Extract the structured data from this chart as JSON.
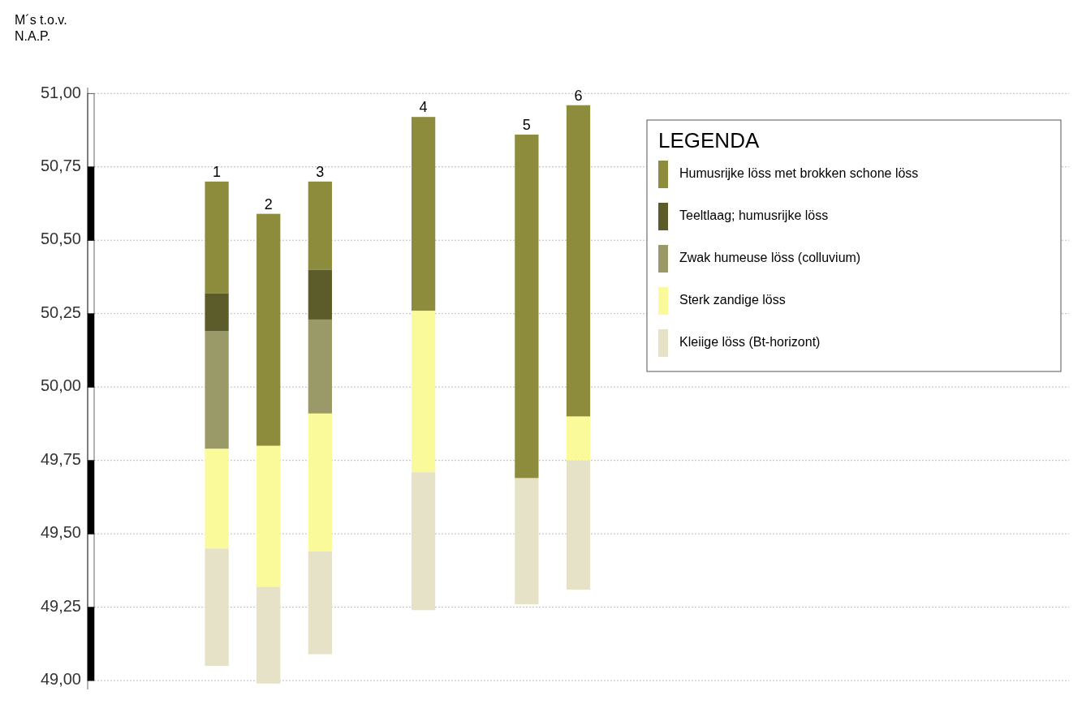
{
  "chart_data": {
    "type": "bar",
    "ylabel": "M´s t.o.v. N.A.P.",
    "legend_title": "LEGENDA",
    "legend": "top right",
    "grid": "y",
    "categories": [
      null,
      null,
      "1",
      "2",
      "3",
      null,
      "4",
      null,
      "5",
      "6",
      null,
      null,
      null,
      null,
      null,
      null,
      null,
      null,
      null
    ],
    "series": [
      {
        "name": "Kleiige löss (Bt-horizont)",
        "color": "#e6e2c8",
        "base": [
          null,
          null,
          49.05,
          48.99,
          49.09,
          null,
          49.24,
          null,
          49.26,
          49.31,
          null,
          null,
          null,
          null,
          null,
          null,
          null,
          null,
          null
        ],
        "values": [
          null,
          null,
          0.4,
          0.33,
          0.35,
          null,
          0.47,
          null,
          0.43,
          0.44,
          null,
          null,
          null,
          null,
          null,
          null,
          null,
          null,
          null
        ]
      },
      {
        "name": "Sterk zandige löss",
        "color": "#fafa9a",
        "base": [
          null,
          null,
          49.45,
          49.32,
          49.44,
          null,
          49.71,
          null,
          null,
          49.75,
          null,
          null,
          null,
          null,
          null,
          null,
          null,
          null,
          null
        ],
        "values": [
          null,
          null,
          0.34,
          0.48,
          0.47,
          null,
          0.55,
          null,
          null,
          0.15,
          null,
          null,
          null,
          null,
          null,
          null,
          null,
          null,
          null
        ]
      },
      {
        "name": "Zwak humeuse löss (colluvium)",
        "color": "#9a9a68",
        "base": [
          null,
          null,
          49.79,
          null,
          49.91,
          null,
          null,
          null,
          null,
          null,
          null,
          null,
          null,
          null,
          null,
          null,
          null,
          null,
          null
        ],
        "values": [
          null,
          null,
          0.4,
          null,
          0.32,
          null,
          null,
          null,
          null,
          null,
          null,
          null,
          null,
          null,
          null,
          null,
          null,
          null,
          null
        ]
      },
      {
        "name": "Teeltlaag; humusrijke löss",
        "color": "#5c5c2a",
        "base": [
          null,
          null,
          50.19,
          null,
          50.23,
          null,
          null,
          null,
          null,
          null,
          null,
          null,
          null,
          null,
          null,
          null,
          null,
          null,
          null
        ],
        "values": [
          null,
          null,
          0.13,
          null,
          0.17,
          null,
          null,
          null,
          null,
          null,
          null,
          null,
          null,
          null,
          null,
          null,
          null,
          null,
          null
        ]
      },
      {
        "name": "Humusrijke löss met brokken schone löss",
        "color": "#8c8c3c",
        "base": [
          null,
          null,
          50.32,
          49.8,
          50.4,
          null,
          50.26,
          null,
          49.69,
          49.9,
          null,
          null,
          null,
          null,
          null,
          null,
          null,
          null,
          null
        ],
        "values": [
          null,
          null,
          0.38,
          0.79,
          0.3,
          null,
          0.66,
          null,
          1.17,
          1.06,
          null,
          null,
          null,
          null,
          null,
          null,
          null,
          null,
          null
        ]
      }
    ],
    "ylim": [
      48.97,
      51.02
    ],
    "yticks": [
      {
        "value": 49,
        "label": "49,00"
      },
      {
        "value": 49.25,
        "label": "49,25"
      },
      {
        "value": 49.5,
        "label": "49,50"
      },
      {
        "value": 49.75,
        "label": "49,75"
      },
      {
        "value": 50,
        "label": "50,00"
      },
      {
        "value": 50.25,
        "label": "50,25"
      },
      {
        "value": 50.5,
        "label": "50,50"
      },
      {
        "value": 50.75,
        "label": "50,75"
      },
      {
        "value": 51,
        "label": "51,00"
      }
    ]
  }
}
